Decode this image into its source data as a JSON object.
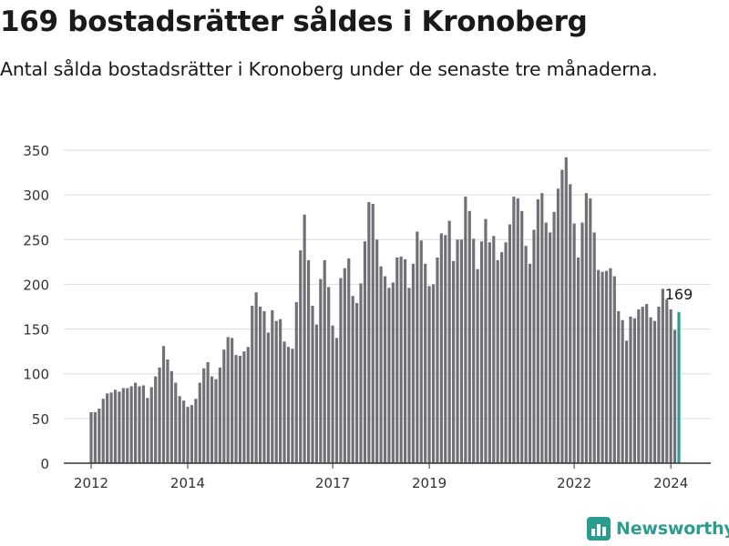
{
  "header": {
    "title": "169 bostadsrätter såldes i Kronoberg",
    "subtitle": "Antal sålda bostadsrätter i Kronoberg under de senaste tre månaderna."
  },
  "brand": {
    "name": "Newsworthy",
    "color": "#2a9d8f",
    "icon": "bar-chart-logo-icon"
  },
  "colors": {
    "bar": "#707077",
    "highlight": "#2a9d8f",
    "grid": "#dddddd",
    "axis": "#333333"
  },
  "chart_data": {
    "type": "bar",
    "title": "",
    "xlabel": "",
    "ylabel": "",
    "ylim": [
      0,
      350
    ],
    "yticks": [
      0,
      50,
      100,
      150,
      200,
      250,
      300,
      350
    ],
    "grid": true,
    "x_start": "2012-01",
    "x_end": "2024-04",
    "xticks": [
      "2012",
      "2014",
      "2017",
      "2019",
      "2022",
      "2024"
    ],
    "highlight_label": "169",
    "values": [
      57,
      57,
      61,
      72,
      78,
      79,
      82,
      80,
      84,
      84,
      86,
      90,
      86,
      87,
      73,
      85,
      97,
      107,
      131,
      116,
      103,
      90,
      75,
      70,
      63,
      65,
      72,
      90,
      106,
      113,
      97,
      94,
      107,
      127,
      141,
      140,
      121,
      120,
      125,
      130,
      176,
      191,
      175,
      170,
      146,
      171,
      159,
      161,
      136,
      130,
      128,
      180,
      238,
      278,
      227,
      176,
      155,
      206,
      227,
      197,
      154,
      140,
      207,
      218,
      229,
      187,
      179,
      201,
      248,
      292,
      290,
      250,
      220,
      209,
      196,
      202,
      230,
      231,
      228,
      196,
      223,
      259,
      249,
      223,
      198,
      200,
      230,
      257,
      255,
      271,
      226,
      250,
      250,
      298,
      282,
      251,
      217,
      248,
      273,
      247,
      254,
      227,
      236,
      247,
      267,
      298,
      296,
      282,
      243,
      223,
      261,
      295,
      302,
      269,
      258,
      281,
      307,
      328,
      342,
      312,
      268,
      230,
      269,
      302,
      296,
      258,
      216,
      214,
      215,
      218,
      209,
      170,
      160,
      137,
      164,
      162,
      172,
      175,
      178,
      163,
      159,
      175,
      195,
      183,
      172,
      149,
      169
    ]
  }
}
